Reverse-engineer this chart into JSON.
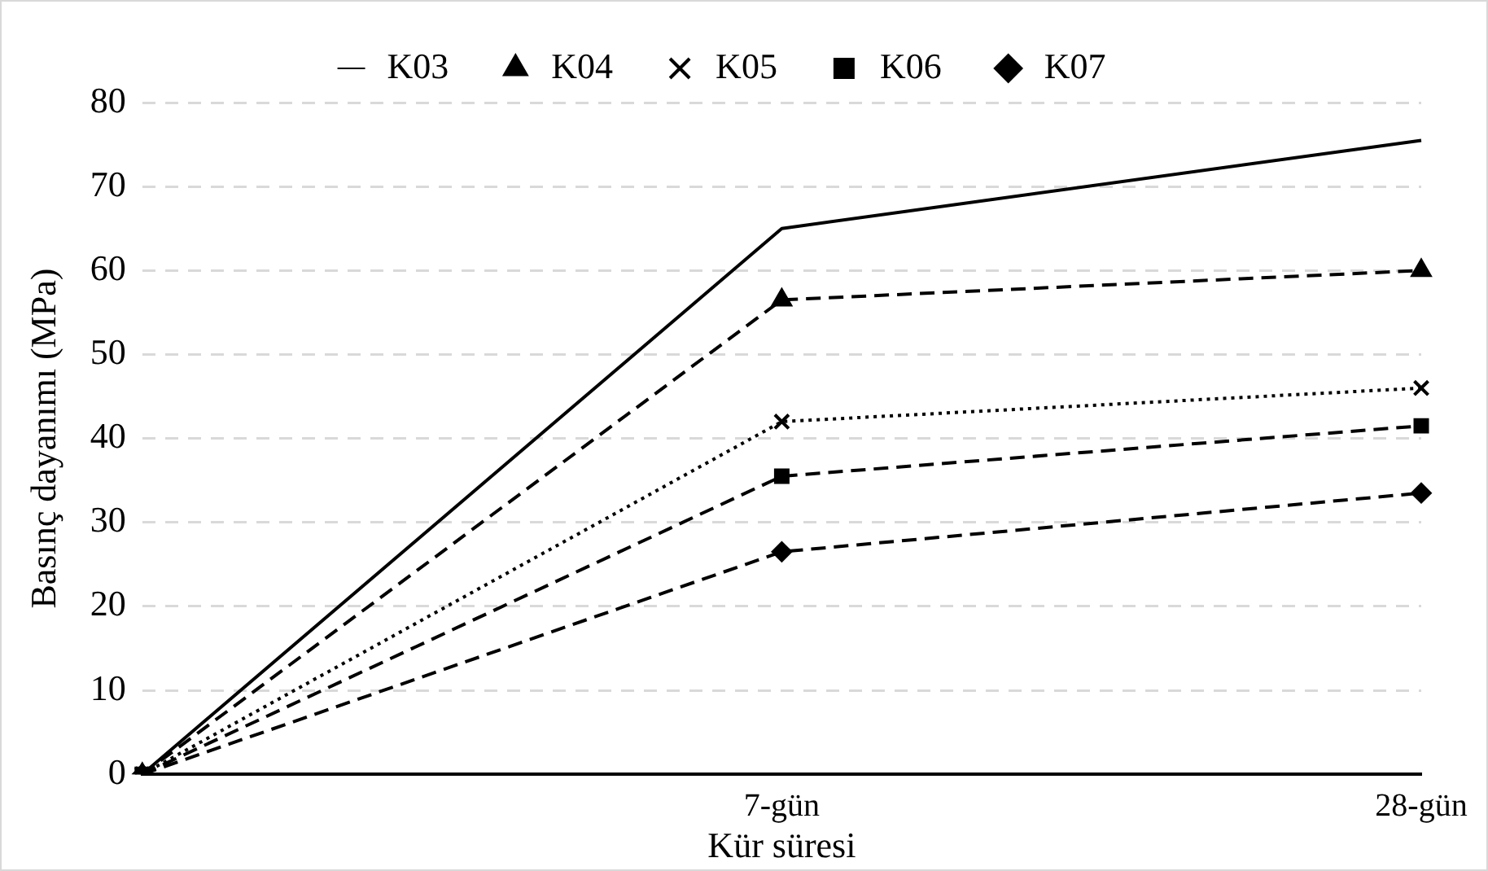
{
  "chart_data": {
    "type": "line",
    "xlabel": "Kür süresi",
    "ylabel": "Basınç dayanımı (MPa)",
    "categories": [
      null,
      "7-gün",
      "28-gün"
    ],
    "series": [
      {
        "name": "K03",
        "color": "#000000",
        "values": [
          0,
          65,
          75.5
        ],
        "marker": "none",
        "line_style": "solid"
      },
      {
        "name": "K04",
        "color": "#000000",
        "values": [
          0,
          56.5,
          60
        ],
        "marker": "triangle",
        "line_style": "dashed"
      },
      {
        "name": "K05",
        "color": "#000000",
        "values": [
          0,
          42,
          46
        ],
        "marker": "cross",
        "line_style": "dotted"
      },
      {
        "name": "K06",
        "color": "#000000",
        "values": [
          0,
          35.5,
          41.5
        ],
        "marker": "square",
        "line_style": "dashed"
      },
      {
        "name": "K07",
        "color": "#000000",
        "values": [
          0,
          26.5,
          33.5
        ],
        "marker": "diamond",
        "line_style": "dashed"
      }
    ],
    "ylim": [
      0,
      80
    ],
    "yticks": [
      0,
      10,
      20,
      30,
      40,
      50,
      60,
      70,
      80
    ],
    "grid": "y",
    "legend": "top"
  }
}
